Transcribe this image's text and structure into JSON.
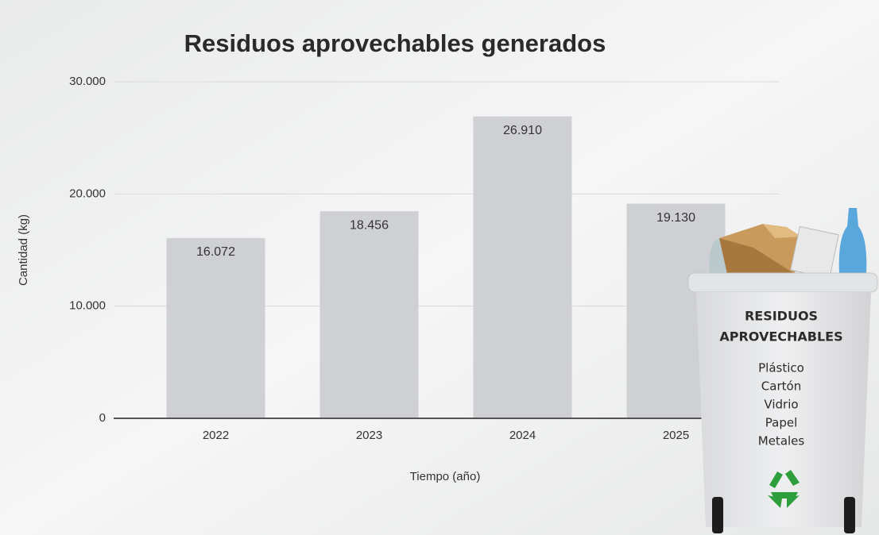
{
  "chart_data": {
    "type": "bar",
    "title": "Residuos aprovechables generados",
    "x_label": "Tiempo (año)",
    "y_label": "Cantidad (kg)",
    "categories": [
      "2022",
      "2023",
      "2024",
      "2025"
    ],
    "values": [
      16072,
      18456,
      26910,
      19130
    ],
    "value_labels": [
      "16.072",
      "18.456",
      "26.910",
      "19.130"
    ],
    "color": "#cfd0d4",
    "ylim": [
      0,
      30000
    ],
    "yticks": [
      0,
      {
        "value": 10000,
        "label": "10.000"
      },
      {
        "value": 20000,
        "label": "20.000"
      },
      {
        "value": 30000,
        "label": "30.000"
      }
    ],
    "grid": true,
    "bin": {
      "title": [
        "RESIDUOS",
        "APROVECHABLES"
      ],
      "items": [
        "Plástico",
        "Cartón",
        "Vidrio",
        "Papel",
        "Metales"
      ]
    }
  }
}
